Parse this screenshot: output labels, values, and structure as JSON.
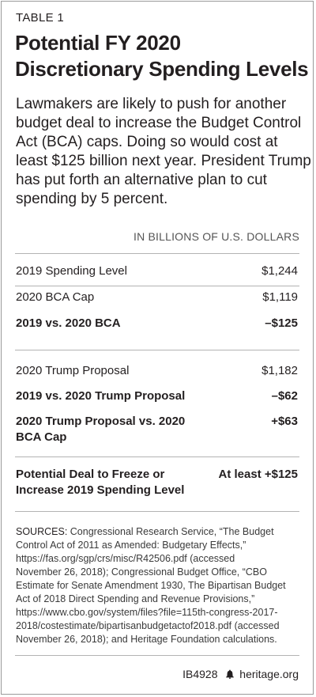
{
  "table_label": "TABLE 1",
  "title_lines": [
    "Potential FY 2020",
    "Discretionary Spending Levels"
  ],
  "intro_lines": [
    "Lawmakers are likely to push for another",
    "budget deal to increase the Budget Control",
    "Act (BCA) caps. Doing so would cost at",
    "least $125 billion next year. President Trump",
    "has put forth an alternative plan to cut",
    "spending by 5 percent."
  ],
  "unit_header": "IN BILLIONS OF U.S. DOLLARS",
  "rows": [
    {
      "label_lines": [
        "2019 Spending Level"
      ],
      "value": "$1,244",
      "bold": false
    },
    {
      "label_lines": [
        "2020 BCA Cap"
      ],
      "value": "$1,119",
      "bold": false
    },
    {
      "label_lines": [
        "2019 vs. 2020 BCA"
      ],
      "value": "–$125",
      "bold": true
    },
    {
      "label_lines": [
        "2020 Trump Proposal"
      ],
      "value": "$1,182",
      "bold": false
    },
    {
      "label_lines": [
        "2019 vs. 2020 Trump Proposal"
      ],
      "value": "–$62",
      "bold": true
    },
    {
      "label_lines": [
        "2020 Trump Proposal vs. 2020",
        "BCA Cap"
      ],
      "value": "+$63",
      "bold": true
    },
    {
      "label_lines": [
        "Potential Deal to Freeze or",
        "Increase 2019 Spending Level"
      ],
      "value": "At least +$125",
      "bold": true
    }
  ],
  "sources": {
    "prefix": "SOURCES:",
    "lines": [
      " Congressional Research Service, “The Budget",
      "Control Act of 2011 as Amended: Budgetary Effects,”",
      "https://fas.org/sgp/crs/misc/R42506.pdf (accessed",
      "November 26, 2018); Congressional Budget Office, “CBO",
      "Estimate for Senate Amendment 1930, The Bipartisan Budget",
      "Act of 2018 Direct Spending and Revenue Provisions,”",
      "https://www.cbo.gov/system/files?file=115th-congress-2017-",
      "2018/costestimate/bipartisanbudgetactof2018.pdf (accessed",
      "November 26, 2018); and Heritage Foundation calculations."
    ]
  },
  "footer": {
    "code": "IB4928",
    "site": "heritage.org",
    "icon": "liberty-bell-icon"
  }
}
